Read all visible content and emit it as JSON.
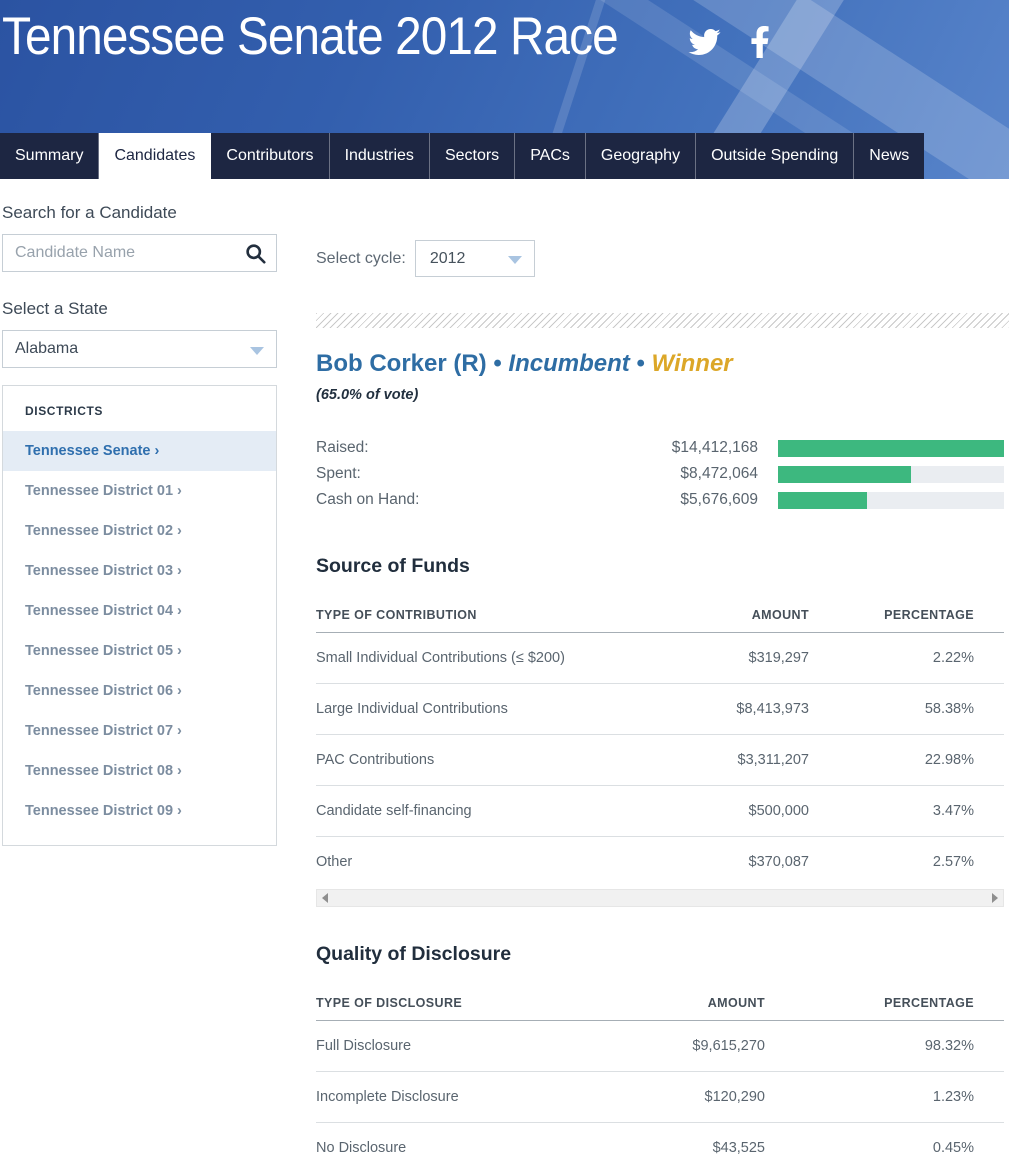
{
  "header": {
    "title": "Tennessee Senate 2012 Race"
  },
  "nav": {
    "tabs": [
      {
        "label": "Summary",
        "active": false
      },
      {
        "label": "Candidates",
        "active": true
      },
      {
        "label": "Contributors",
        "active": false
      },
      {
        "label": "Industries",
        "active": false
      },
      {
        "label": "Sectors",
        "active": false
      },
      {
        "label": "PACs",
        "active": false
      },
      {
        "label": "Geography",
        "active": false
      },
      {
        "label": "Outside Spending",
        "active": false
      },
      {
        "label": "News",
        "active": false
      }
    ]
  },
  "sidebar": {
    "search_heading": "Search for a Candidate",
    "search_placeholder": "Candidate Name",
    "state_heading": "Select a State",
    "state_selected": "Alabama",
    "districts_heading": "DISCTRICTS",
    "districts": [
      {
        "label": "Tennessee Senate ›",
        "active": true
      },
      {
        "label": "Tennessee District 01 ›",
        "active": false
      },
      {
        "label": "Tennessee District 02 ›",
        "active": false
      },
      {
        "label": "Tennessee District 03 ›",
        "active": false
      },
      {
        "label": "Tennessee District 04 ›",
        "active": false
      },
      {
        "label": "Tennessee District 05 ›",
        "active": false
      },
      {
        "label": "Tennessee District 06 ›",
        "active": false
      },
      {
        "label": "Tennessee District 07 ›",
        "active": false
      },
      {
        "label": "Tennessee District 08 ›",
        "active": false
      },
      {
        "label": "Tennessee District 09 ›",
        "active": false
      }
    ]
  },
  "main": {
    "cycle_label": "Select cycle:",
    "cycle_selected": "2012",
    "candidate": {
      "name": "Bob Corker (R)",
      "separator": "•",
      "status": "Incumbent",
      "result": "Winner",
      "vote_share": "(65.0% of vote)"
    },
    "finance": {
      "bar_color": "#3db87f",
      "track_color": "#eaedf1",
      "max_value": 14412168,
      "rows": [
        {
          "label": "Raised:",
          "amount": "$14,412,168",
          "value": 14412168
        },
        {
          "label": "Spent:",
          "amount": "$8,472,064",
          "value": 8472064
        },
        {
          "label": "Cash on Hand:",
          "amount": "$5,676,609",
          "value": 5676609
        }
      ]
    },
    "source_of_funds": {
      "heading": "Source of Funds",
      "columns": [
        "TYPE OF CONTRIBUTION",
        "AMOUNT",
        "PERCENTAGE"
      ],
      "rows": [
        {
          "type": "Small Individual Contributions (≤ $200)",
          "amount": "$319,297",
          "percentage": "2.22%"
        },
        {
          "type": "Large Individual Contributions",
          "amount": "$8,413,973",
          "percentage": "58.38%"
        },
        {
          "type": "PAC Contributions",
          "amount": "$3,311,207",
          "percentage": "22.98%"
        },
        {
          "type": "Candidate self-financing",
          "amount": "$500,000",
          "percentage": "3.47%"
        },
        {
          "type": "Other",
          "amount": "$370,087",
          "percentage": "2.57%"
        }
      ]
    },
    "quality_of_disclosure": {
      "heading": "Quality of Disclosure",
      "columns": [
        "TYPE OF DISCLOSURE",
        "AMOUNT",
        "PERCENTAGE"
      ],
      "rows": [
        {
          "type": "Full Disclosure",
          "amount": "$9,615,270",
          "percentage": "98.32%"
        },
        {
          "type": "Incomplete Disclosure",
          "amount": "$120,290",
          "percentage": "1.23%"
        },
        {
          "type": "No Disclosure",
          "amount": "$43,525",
          "percentage": "0.45%"
        }
      ]
    }
  }
}
